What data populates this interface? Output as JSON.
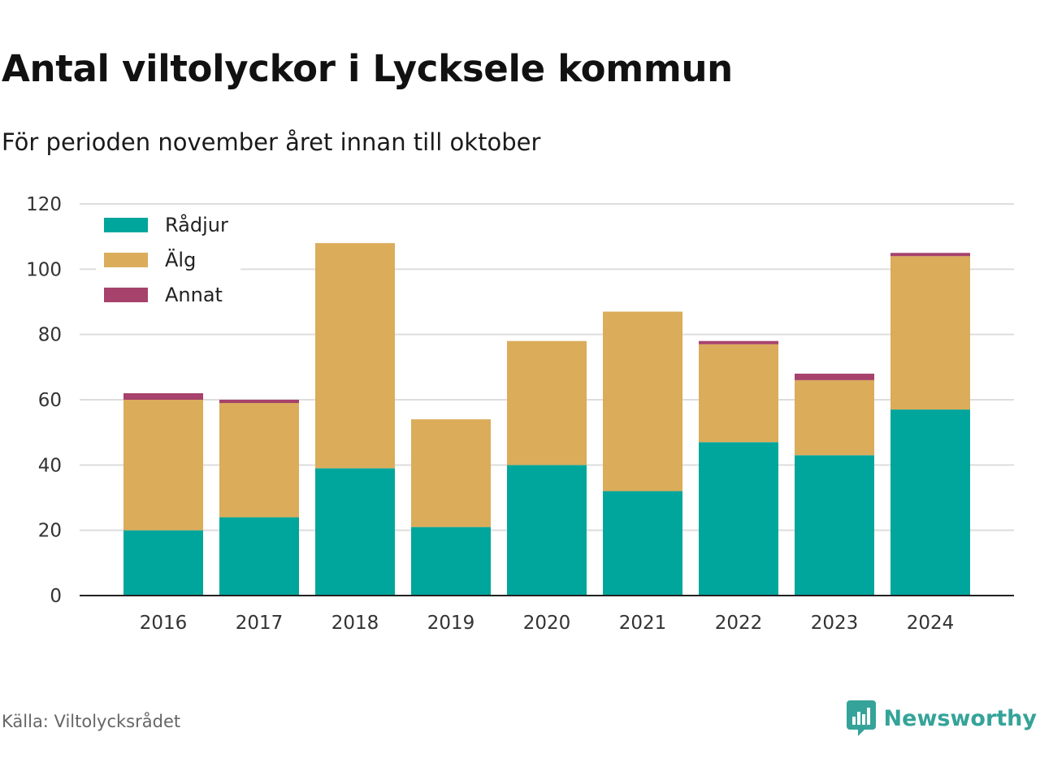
{
  "title": "Antal viltolyckor i Lycksele kommun",
  "subtitle": "För perioden november året innan till oktober",
  "source": "Källa: Viltolycksrådet",
  "brand": {
    "name": "Newsworthy",
    "icon": "bar-chart-bubble-icon",
    "color": "#35a399"
  },
  "chart_data": {
    "type": "bar",
    "stacked": true,
    "categories": [
      "2016",
      "2017",
      "2018",
      "2019",
      "2020",
      "2021",
      "2022",
      "2023",
      "2024"
    ],
    "series": [
      {
        "name": "Rådjur",
        "color": "#00a69c",
        "values": [
          20,
          24,
          39,
          21,
          40,
          32,
          47,
          43,
          57
        ]
      },
      {
        "name": "Älg",
        "color": "#dbac5a",
        "values": [
          40,
          35,
          69,
          33,
          38,
          55,
          30,
          23,
          47
        ]
      },
      {
        "name": "Annat",
        "color": "#a6426c",
        "values": [
          2,
          1,
          0,
          0,
          0,
          0,
          1,
          2,
          1
        ]
      }
    ],
    "ylim": [
      0,
      120
    ],
    "yticks": [
      0,
      20,
      40,
      60,
      80,
      100,
      120
    ],
    "xlabel": "",
    "ylabel": "",
    "grid": true,
    "legend_position": "top-left"
  }
}
